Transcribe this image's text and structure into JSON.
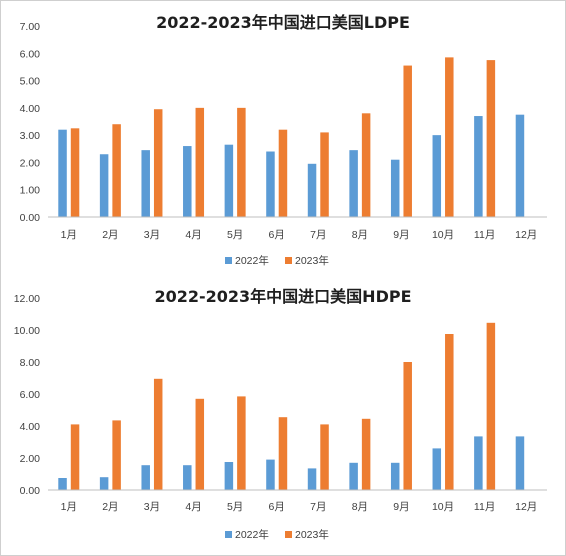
{
  "colors": {
    "series_2022": "#5b9bd5",
    "series_2023": "#ed7d31",
    "axis": "#bfbfbf"
  },
  "chart_data": [
    {
      "type": "bar",
      "title": "2022-2023年中国进口美国LDPE",
      "categories": [
        "1月",
        "2月",
        "3月",
        "4月",
        "5月",
        "6月",
        "7月",
        "8月",
        "9月",
        "10月",
        "11月",
        "12月"
      ],
      "series": [
        {
          "name": "2022年",
          "values": [
            3.2,
            2.3,
            2.45,
            2.6,
            2.65,
            2.4,
            1.95,
            2.45,
            2.1,
            3.0,
            3.7,
            3.75
          ]
        },
        {
          "name": "2023年",
          "values": [
            3.25,
            3.4,
            3.95,
            4.0,
            4.0,
            3.2,
            3.1,
            3.8,
            5.55,
            5.85,
            5.75,
            null
          ]
        }
      ],
      "y_ticks": [
        "0.00",
        "1.00",
        "2.00",
        "3.00",
        "4.00",
        "5.00",
        "6.00",
        "7.00"
      ],
      "ylim": [
        0,
        7
      ],
      "legend_position": "bottom",
      "grid": false
    },
    {
      "type": "bar",
      "title": "2022-2023年中国进口美国HDPE",
      "categories": [
        "1月",
        "2月",
        "3月",
        "4月",
        "5月",
        "6月",
        "7月",
        "8月",
        "9月",
        "10月",
        "11月",
        "12月"
      ],
      "series": [
        {
          "name": "2022年",
          "values": [
            0.75,
            0.8,
            1.55,
            1.55,
            1.75,
            1.9,
            1.35,
            1.7,
            1.7,
            2.6,
            3.35,
            3.35
          ]
        },
        {
          "name": "2023年",
          "values": [
            4.1,
            4.35,
            6.95,
            5.7,
            5.85,
            4.55,
            4.1,
            4.45,
            8.0,
            9.75,
            10.45,
            null
          ]
        }
      ],
      "y_ticks": [
        "0.00",
        "2.00",
        "4.00",
        "6.00",
        "8.00",
        "10.00",
        "12.00"
      ],
      "ylim": [
        0,
        12
      ],
      "legend_position": "bottom",
      "grid": false
    }
  ]
}
